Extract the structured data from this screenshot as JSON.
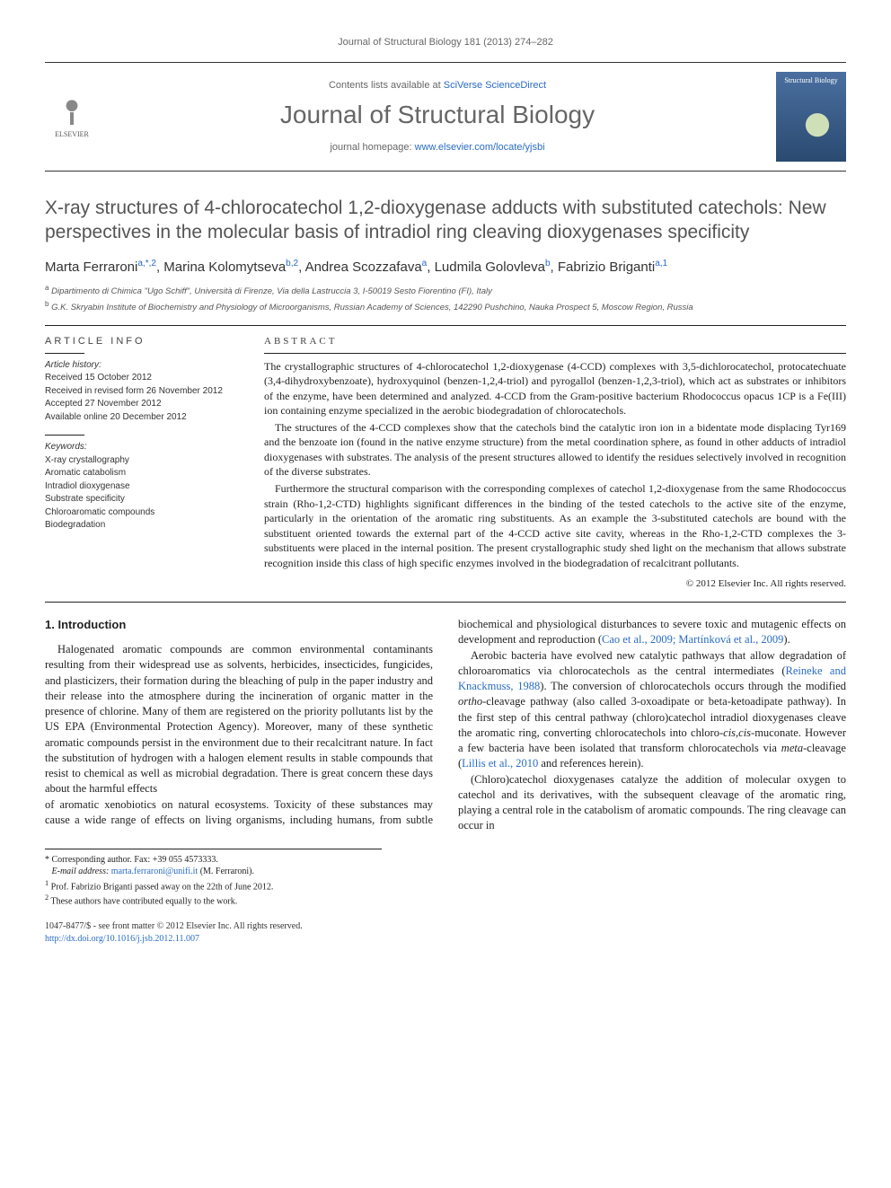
{
  "running_head": "Journal of Structural Biology 181 (2013) 274–282",
  "masthead": {
    "avail_prefix": "Contents lists available at ",
    "avail_link": "SciVerse ScienceDirect",
    "journal_title": "Journal of Structural Biology",
    "home_prefix": "journal homepage: ",
    "home_url": "www.elsevier.com/locate/yjsbi",
    "publisher_name": "ELSEVIER",
    "cover_text": "Structural Biology"
  },
  "title": "X-ray structures of 4-chlorocatechol 1,2-dioxygenase adducts with substituted catechols: New perspectives in the molecular basis of intradiol ring cleaving dioxygenases specificity",
  "authors_html": "Marta Ferraroni<sup>a,*,2</sup>, Marina Kolomytseva<sup>b,2</sup>, Andrea Scozzafava<sup>a</sup>, Ludmila Golovleva<sup>b</sup>, Fabrizio Briganti<sup>a,1</sup>",
  "affiliations": [
    {
      "sup": "a",
      "text": "Dipartimento di Chimica \"Ugo Schiff\", Università di Firenze, Via della Lastruccia 3, I-50019 Sesto Fiorentino (FI), Italy"
    },
    {
      "sup": "b",
      "text": "G.K. Skryabin Institute of Biochemistry and Physiology of Microorganisms, Russian Academy of Sciences, 142290 Pushchino, Nauka Prospect 5, Moscow Region, Russia"
    }
  ],
  "article_info": {
    "heading": "ARTICLE INFO",
    "history_label": "Article history:",
    "history": [
      "Received 15 October 2012",
      "Received in revised form 26 November 2012",
      "Accepted 27 November 2012",
      "Available online 20 December 2012"
    ],
    "keywords_label": "Keywords:",
    "keywords": [
      "X-ray crystallography",
      "Aromatic catabolism",
      "Intradiol dioxygenase",
      "Substrate specificity",
      "Chloroaromatic compounds",
      "Biodegradation"
    ]
  },
  "abstract": {
    "heading": "ABSTRACT",
    "paragraphs": [
      "The crystallographic structures of 4-chlorocatechol 1,2-dioxygenase (4-CCD) complexes with 3,5-dichlorocatechol, protocatechuate (3,4-dihydroxybenzoate), hydroxyquinol (benzen-1,2,4-triol) and pyrogallol (benzen-1,2,3-triol), which act as substrates or inhibitors of the enzyme, have been determined and analyzed. 4-CCD from the Gram-positive bacterium Rhodococcus opacus 1CP is a Fe(III) ion containing enzyme specialized in the aerobic biodegradation of chlorocatechols.",
      "The structures of the 4-CCD complexes show that the catechols bind the catalytic iron ion in a bidentate mode displacing Tyr169 and the benzoate ion (found in the native enzyme structure) from the metal coordination sphere, as found in other adducts of intradiol dioxygenases with substrates. The analysis of the present structures allowed to identify the residues selectively involved in recognition of the diverse substrates.",
      "Furthermore the structural comparison with the corresponding complexes of catechol 1,2-dioxygenase from the same Rhodococcus strain (Rho-1,2-CTD) highlights significant differences in the binding of the tested catechols to the active site of the enzyme, particularly in the orientation of the aromatic ring substituents. As an example the 3-substituted catechols are bound with the substituent oriented towards the external part of the 4-CCD active site cavity, whereas in the Rho-1,2-CTD complexes the 3-substituents were placed in the internal position. The present crystallographic study shed light on the mechanism that allows substrate recognition inside this class of high specific enzymes involved in the biodegradation of recalcitrant pollutants."
    ],
    "copyright": "© 2012 Elsevier Inc. All rights reserved."
  },
  "intro": {
    "heading": "1. Introduction",
    "paragraphs": [
      "Halogenated aromatic compounds are common environmental contaminants resulting from their widespread use as solvents, herbicides, insecticides, fungicides, and plasticizers, their formation during the bleaching of pulp in the paper industry and their release into the atmosphere during the incineration of organic matter in the presence of chlorine. Many of them are registered on the priority pollutants list by the US EPA (Environmental Protection Agency). Moreover, many of these synthetic aromatic compounds persist in the environment due to their recalcitrant nature. In fact the substitution of hydrogen with a halogen element results in stable compounds that resist to chemical as well as microbial degradation. There is great concern these days about the harmful effects",
      "of aromatic xenobiotics on natural ecosystems. Toxicity of these substances may cause a wide range of effects on living organisms, including humans, from subtle biochemical and physiological disturbances to severe toxic and mutagenic effects on development and reproduction (Cao et al., 2009; Martínková et al., 2009).",
      "Aerobic bacteria have evolved new catalytic pathways that allow degradation of chloroaromatics via chlorocatechols as the central intermediates (Reineke and Knackmuss, 1988). The conversion of chlorocatechols occurs through the modified ortho-cleavage pathway (also called 3-oxoadipate or beta-ketoadipate pathway). In the first step of this central pathway (chloro)catechol intradiol dioxygenases cleave the aromatic ring, converting chlorocatechols into chloro-cis,cis-muconate. However a few bacteria have been isolated that transform chlorocatechols via meta-cleavage (Lillis et al., 2010 and references herein).",
      "(Chloro)catechol dioxygenases catalyze the addition of molecular oxygen to catechol and its derivatives, with the subsequent cleavage of the aromatic ring, playing a central role in the catabolism of aromatic compounds. The ring cleavage can occur in"
    ]
  },
  "footnotes": {
    "corr": "* Corresponding author. Fax: +39 055 4573333.",
    "email_label": "E-mail address:",
    "email": "marta.ferraroni@unifi.it",
    "email_paren": "(M. Ferraroni).",
    "n1": "Prof. Fabrizio Briganti passed away on the 22th of June 2012.",
    "n2": "These authors have contributed equally to the work."
  },
  "bottom": {
    "issn": "1047-8477/$ - see front matter © 2012 Elsevier Inc. All rights reserved.",
    "doi": "http://dx.doi.org/10.1016/j.jsb.2012.11.007"
  },
  "colors": {
    "link": "#2a6cc2",
    "text": "#222222",
    "muted": "#666666",
    "title_gray": "#545454"
  }
}
